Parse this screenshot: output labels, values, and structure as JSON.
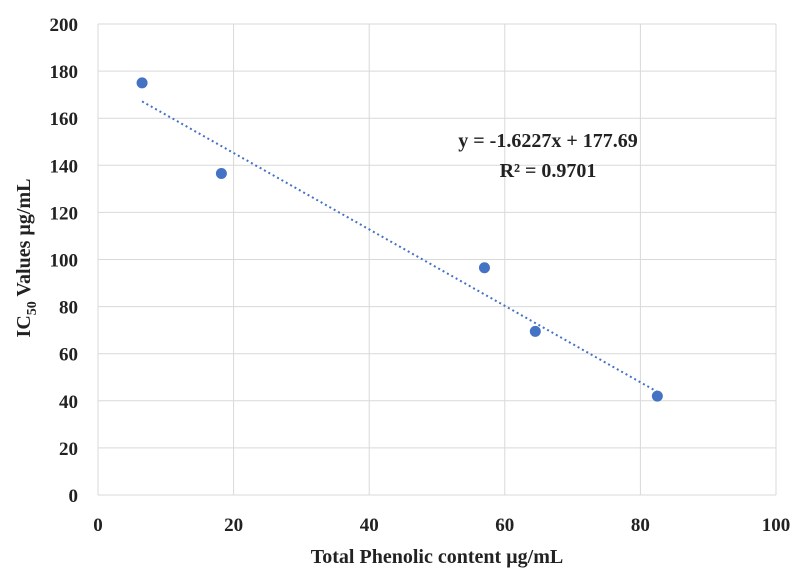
{
  "chart_data": {
    "type": "scatter",
    "xlabel": "Total Phenolic  content µg/mL",
    "ylabel": {
      "prefix": "IC",
      "subscript": "50",
      "suffix": " Values  µg/mL"
    },
    "xlim": [
      0,
      100
    ],
    "ylim": [
      0,
      200
    ],
    "xticks": [
      0,
      20,
      40,
      60,
      80,
      100
    ],
    "yticks": [
      0,
      20,
      40,
      60,
      80,
      100,
      120,
      140,
      160,
      180,
      200
    ],
    "grid": true,
    "series": [
      {
        "color": "#4472C4",
        "points": [
          {
            "x": 6.5,
            "y": 175
          },
          {
            "x": 18.2,
            "y": 136.5
          },
          {
            "x": 57,
            "y": 96.5
          },
          {
            "x": 64.5,
            "y": 69.5
          },
          {
            "x": 82.5,
            "y": 42
          }
        ]
      }
    ],
    "trendline": {
      "style": "dotted",
      "color": "#4472C4",
      "slope": -1.6227,
      "intercept": 177.69,
      "x_range": [
        6.5,
        82.5
      ]
    },
    "annotations": [
      "y = -1.6227x + 177.69",
      "R² = 0.9701"
    ]
  }
}
